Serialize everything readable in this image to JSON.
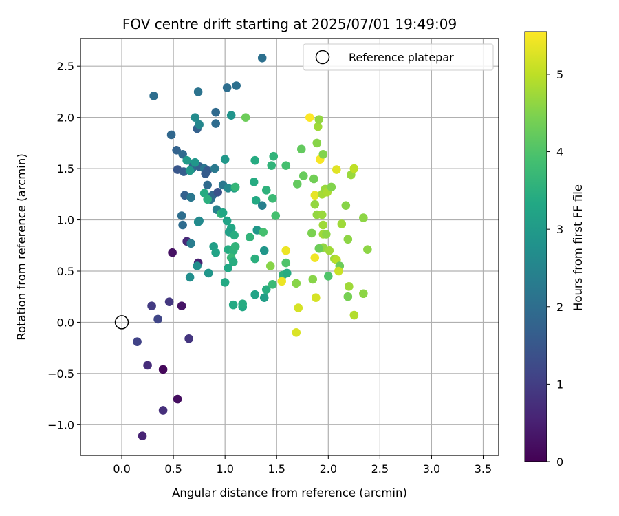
{
  "chart_data": {
    "type": "scatter",
    "title": "FOV centre drift starting at 2025/07/01 19:49:09",
    "xlabel": "Angular distance from reference (arcmin)",
    "ylabel": "Rotation from reference (arcmin)",
    "xlim": [
      -0.4,
      3.65
    ],
    "ylim": [
      -1.3,
      2.77
    ],
    "xticks": [
      0.0,
      0.5,
      1.0,
      1.5,
      2.0,
      2.5,
      3.0,
      3.5
    ],
    "xtick_labels": [
      "0.0",
      "0.5",
      "1.0",
      "1.5",
      "2.0",
      "2.5",
      "3.0",
      "3.5"
    ],
    "yticks": [
      -1.0,
      -0.5,
      0.0,
      0.5,
      1.0,
      1.5,
      2.0,
      2.5
    ],
    "ytick_labels": [
      "−1.0",
      "−0.5",
      "0.0",
      "0.5",
      "1.0",
      "1.5",
      "2.0",
      "2.5"
    ],
    "grid": true,
    "legend_position": "top-right",
    "legend": [
      {
        "label": "Reference platepar",
        "marker": "open-circle"
      }
    ],
    "colorbar": {
      "label": "Hours from first FF file",
      "colormap": "viridis",
      "range": [
        0,
        5.55
      ],
      "ticks": [
        0,
        1,
        2,
        3,
        4,
        5
      ],
      "tick_labels": [
        "0",
        "1",
        "2",
        "3",
        "4",
        "5"
      ]
    },
    "reference_point": {
      "x": 0.0,
      "y": 0.0
    },
    "points": [
      [
        0.2,
        -1.11,
        0.55
      ],
      [
        0.4,
        -0.86,
        0.75
      ],
      [
        0.54,
        -0.75,
        0.2
      ],
      [
        0.4,
        -0.46,
        0.1
      ],
      [
        0.25,
        -0.42,
        0.7
      ],
      [
        0.15,
        -0.19,
        1.1
      ],
      [
        0.65,
        -0.16,
        0.85
      ],
      [
        0.35,
        0.03,
        1.15
      ],
      [
        0.29,
        0.16,
        0.95
      ],
      [
        0.46,
        0.2,
        0.9
      ],
      [
        0.58,
        0.16,
        0.3
      ],
      [
        0.49,
        0.68,
        0.25
      ],
      [
        0.63,
        0.79,
        0.65
      ],
      [
        0.74,
        0.58,
        0.5
      ],
      [
        0.31,
        2.21,
        2.0
      ],
      [
        0.74,
        2.25,
        2.1
      ],
      [
        1.02,
        2.29,
        2.0
      ],
      [
        1.11,
        2.31,
        2.05
      ],
      [
        1.36,
        2.58,
        2.05
      ],
      [
        0.48,
        1.83,
        1.85
      ],
      [
        0.73,
        1.89,
        1.7
      ],
      [
        0.75,
        1.93,
        2.55
      ],
      [
        0.91,
        1.94,
        1.95
      ],
      [
        0.91,
        2.05,
        1.9
      ],
      [
        0.71,
        2.0,
        2.65
      ],
      [
        1.06,
        2.02,
        2.85
      ],
      [
        1.2,
        2.0,
        4.3
      ],
      [
        0.53,
        1.68,
        1.75
      ],
      [
        0.59,
        1.64,
        1.9
      ],
      [
        0.54,
        1.49,
        1.5
      ],
      [
        0.6,
        1.47,
        1.65
      ],
      [
        0.68,
        1.5,
        2.0
      ],
      [
        0.69,
        1.55,
        1.85
      ],
      [
        0.75,
        1.52,
        1.75
      ],
      [
        0.8,
        1.5,
        2.15
      ],
      [
        0.83,
        1.48,
        1.55
      ],
      [
        0.9,
        1.5,
        2.25
      ],
      [
        0.71,
        1.56,
        2.9
      ],
      [
        0.63,
        1.58,
        3.0
      ],
      [
        0.66,
        1.48,
        2.95
      ],
      [
        0.81,
        1.45,
        1.6
      ],
      [
        1.0,
        1.59,
        2.95
      ],
      [
        0.61,
        1.24,
        1.7
      ],
      [
        0.67,
        1.22,
        2.2
      ],
      [
        0.8,
        1.26,
        3.4
      ],
      [
        0.83,
        1.34,
        1.9
      ],
      [
        0.86,
        1.2,
        2.15
      ],
      [
        0.88,
        1.24,
        1.85
      ],
      [
        0.83,
        1.2,
        3.5
      ],
      [
        0.93,
        1.27,
        1.4
      ],
      [
        0.98,
        1.34,
        2.2
      ],
      [
        1.03,
        1.31,
        2.6
      ],
      [
        1.09,
        1.31,
        3.05
      ],
      [
        1.1,
        1.32,
        3.65
      ],
      [
        0.92,
        1.1,
        2.4
      ],
      [
        0.96,
        1.06,
        3.6
      ],
      [
        0.98,
        1.07,
        3.3
      ],
      [
        0.58,
        1.04,
        2.0
      ],
      [
        0.59,
        0.95,
        1.95
      ],
      [
        0.74,
        0.98,
        2.75
      ],
      [
        0.75,
        0.99,
        2.6
      ],
      [
        0.67,
        0.77,
        2.3
      ],
      [
        0.89,
        0.74,
        3.1
      ],
      [
        0.91,
        0.68,
        3.2
      ],
      [
        0.73,
        0.55,
        2.7
      ],
      [
        0.66,
        0.44,
        2.7
      ],
      [
        0.84,
        0.48,
        2.9
      ],
      [
        1.02,
        0.99,
        3.2
      ],
      [
        1.06,
        0.92,
        3.3
      ],
      [
        1.04,
        0.88,
        3.15
      ],
      [
        1.09,
        0.85,
        3.45
      ],
      [
        1.03,
        0.71,
        3.4
      ],
      [
        1.08,
        0.7,
        3.55
      ],
      [
        1.1,
        0.74,
        3.6
      ],
      [
        1.06,
        0.63,
        3.7
      ],
      [
        1.08,
        0.59,
        3.45
      ],
      [
        1.03,
        0.53,
        3.3
      ],
      [
        1.0,
        0.39,
        3.35
      ],
      [
        1.08,
        0.17,
        3.35
      ],
      [
        1.17,
        0.15,
        3.3
      ],
      [
        1.17,
        0.18,
        3.4
      ],
      [
        1.24,
        0.83,
        3.6
      ],
      [
        1.29,
        0.62,
        3.5
      ],
      [
        1.29,
        0.27,
        3.2
      ],
      [
        1.31,
        0.9,
        2.95
      ],
      [
        1.37,
        0.88,
        3.9
      ],
      [
        1.38,
        0.7,
        2.9
      ],
      [
        1.38,
        0.24,
        3.1
      ],
      [
        1.4,
        0.32,
        3.45
      ],
      [
        1.3,
        1.19,
        3.35
      ],
      [
        1.36,
        1.14,
        2.4
      ],
      [
        1.28,
        1.37,
        3.4
      ],
      [
        1.29,
        1.58,
        3.4
      ],
      [
        1.4,
        1.29,
        3.55
      ],
      [
        1.45,
        1.53,
        3.6
      ],
      [
        1.47,
        1.62,
        3.6
      ],
      [
        1.46,
        1.21,
        3.75
      ],
      [
        1.49,
        1.04,
        3.9
      ],
      [
        1.44,
        0.55,
        4.55
      ],
      [
        1.46,
        0.37,
        3.75
      ],
      [
        1.56,
        0.46,
        3.55
      ],
      [
        1.6,
        0.48,
        3.4
      ],
      [
        1.59,
        0.58,
        4.0
      ],
      [
        1.59,
        0.7,
        5.4
      ],
      [
        1.55,
        0.4,
        5.4
      ],
      [
        1.59,
        1.53,
        3.9
      ],
      [
        1.69,
        0.38,
        4.55
      ],
      [
        1.7,
        1.35,
        4.2
      ],
      [
        1.74,
        1.69,
        4.2
      ],
      [
        1.76,
        1.43,
        4.25
      ],
      [
        1.69,
        -0.1,
        5.25
      ],
      [
        1.71,
        0.14,
        5.2
      ],
      [
        1.84,
        0.87,
        4.45
      ],
      [
        1.85,
        0.42,
        4.55
      ],
      [
        1.88,
        0.24,
        5.2
      ],
      [
        1.87,
        0.63,
        5.45
      ],
      [
        1.87,
        1.15,
        4.65
      ],
      [
        1.87,
        1.24,
        5.35
      ],
      [
        1.86,
        1.4,
        4.35
      ],
      [
        1.82,
        2.0,
        5.55
      ],
      [
        1.89,
        1.75,
        4.55
      ],
      [
        1.9,
        1.91,
        4.75
      ],
      [
        1.91,
        1.98,
        4.65
      ],
      [
        1.89,
        1.05,
        4.65
      ],
      [
        1.92,
        1.59,
        5.5
      ],
      [
        1.94,
        1.25,
        4.8
      ],
      [
        1.97,
        1.3,
        4.7
      ],
      [
        1.95,
        1.64,
        4.5
      ],
      [
        1.94,
        1.05,
        4.7
      ],
      [
        1.95,
        0.86,
        4.75
      ],
      [
        1.98,
        0.86,
        4.6
      ],
      [
        1.95,
        0.95,
        4.75
      ],
      [
        1.95,
        0.73,
        4.65
      ],
      [
        1.91,
        0.72,
        4.3
      ],
      [
        2.01,
        0.7,
        4.75
      ],
      [
        1.99,
        1.27,
        4.85
      ],
      [
        2.03,
        1.32,
        4.5
      ],
      [
        2.0,
        0.45,
        4.0
      ],
      [
        2.06,
        0.62,
        4.75
      ],
      [
        2.08,
        0.61,
        4.95
      ],
      [
        2.11,
        0.55,
        4.3
      ],
      [
        2.1,
        0.5,
        5.1
      ],
      [
        2.08,
        1.49,
        5.3
      ],
      [
        2.13,
        0.96,
        4.75
      ],
      [
        2.17,
        1.14,
        4.55
      ],
      [
        2.19,
        0.81,
        4.6
      ],
      [
        2.19,
        0.25,
        4.4
      ],
      [
        2.2,
        0.35,
        4.75
      ],
      [
        2.22,
        1.44,
        4.7
      ],
      [
        2.25,
        1.5,
        5.0
      ],
      [
        2.25,
        0.07,
        4.9
      ],
      [
        2.34,
        1.02,
        4.6
      ],
      [
        2.34,
        0.28,
        4.6
      ],
      [
        2.38,
        0.71,
        4.6
      ]
    ]
  }
}
